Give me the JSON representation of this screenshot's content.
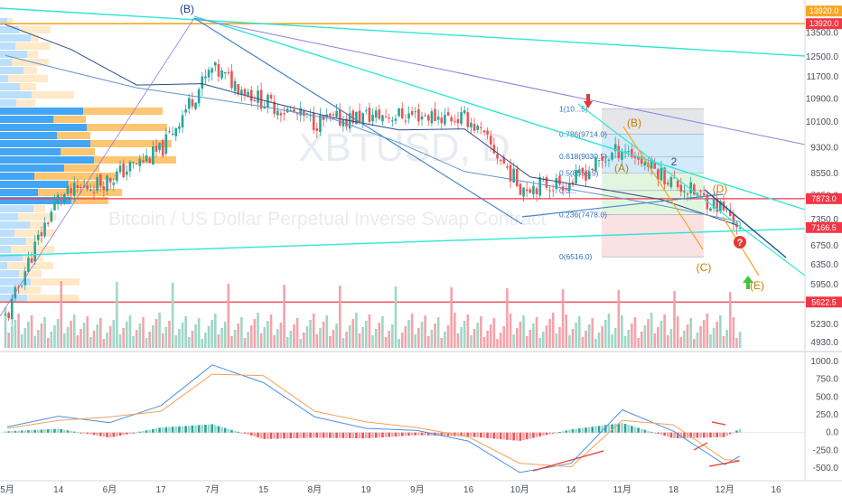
{
  "watermark": {
    "symbol": "XBTUSD, D",
    "description": "Bitcoin / US Dollar Perpetual Inverse Swap Contract"
  },
  "colors": {
    "up": "#26a69a",
    "down": "#ef5350",
    "up_vol": "#9fd6c8",
    "down_vol": "#f4a3aa",
    "ema_fast": "#2f4a8a",
    "ema_slow": "#5f95cc",
    "cyan": "#2ee6d6",
    "navy": "#1f4f8f",
    "purple": "#8a7fe0",
    "blue_line": "#4a87c9",
    "orange": "#f6a623",
    "red_line": "#f23645",
    "macd_line": "#4a90e2",
    "signal_line": "#f5a05a",
    "vp_up": "#2196f3",
    "vp_down": "#ffb74d"
  },
  "labels": {
    "wave_B_top": "(B)",
    "wave_A": "(A)",
    "wave_B": "(B)",
    "wave_C": "(C)",
    "wave_D": "(D)",
    "wave_E": "(E)",
    "wave_small_2": "2",
    "question": "?"
  },
  "fib_levels": [
    {
      "label": "1(10...5)",
      "value": 10540
    },
    {
      "label": "0.786(9714.0)",
      "value": 9714
    },
    {
      "label": "0.618(9030.5)",
      "value": 9030.5
    },
    {
      "label": "0.5(8558.5)",
      "value": 8558.5
    },
    {
      "label": "0.3...",
      "value": 8085
    },
    {
      "label": "0.236(7478.0)",
      "value": 7478
    },
    {
      "label": "0(6516.0)",
      "value": 6516
    }
  ],
  "price_tags": [
    {
      "text": "13920.0",
      "value": 13920,
      "color": "#f6a623"
    },
    {
      "text": "13920.0",
      "value": 13920,
      "color": "#f23645"
    },
    {
      "text": "7873.0",
      "value": 7873,
      "color": "#f23645"
    },
    {
      "text": "7166.5",
      "value": 7166.5,
      "color": "#f23645"
    },
    {
      "text": "5622.5",
      "value": 5622.5,
      "color": "#f23645"
    }
  ],
  "chart_data": [
    {
      "type": "line",
      "title": "",
      "description": "XBTUSD daily candlestick price chart with volume, EMAs, volume profile, Fibonacci retracement and Elliott-wave annotations",
      "x_ticks": [
        "5月",
        "14",
        "6月",
        "17",
        "7月",
        "15",
        "8月",
        "19",
        "9月",
        "16",
        "10月",
        "14",
        "11月",
        "18",
        "12月",
        "16"
      ],
      "y_ticks": [
        4930.0,
        5230.0,
        5590.0,
        5950.0,
        6350.0,
        6750.0,
        7350.0,
        7950.0,
        8550.0,
        9300.0,
        10100.0,
        10900.0,
        11700.0,
        12500.0,
        13500.0
      ],
      "y_scale": "log",
      "ylim": [
        4800,
        14600
      ],
      "horizontal_levels": [
        13920.0,
        7873.0,
        5622.5
      ],
      "last_price": 7166.5,
      "close_path": [
        {
          "x": "5月",
          "y": 5350
        },
        {
          "x": "14",
          "y": 7900
        },
        {
          "x": "6月",
          "y": 8400
        },
        {
          "x": "17",
          "y": 9200
        },
        {
          "x": "7月",
          "y": 12000
        },
        {
          "x": "15",
          "y": 10800
        },
        {
          "x": "8月",
          "y": 10100
        },
        {
          "x": "19",
          "y": 10300
        },
        {
          "x": "9月",
          "y": 10350
        },
        {
          "x": "16",
          "y": 10200
        },
        {
          "x": "10月",
          "y": 8200
        },
        {
          "x": "14",
          "y": 8300
        },
        {
          "x": "11月",
          "y": 9300
        },
        {
          "x": "18",
          "y": 8300
        },
        {
          "x": "12月",
          "y": 7600
        },
        {
          "x": "16",
          "y": 7166.5
        }
      ],
      "series": [
        {
          "values": [
            13880,
            12800,
            11400,
            11450,
            10800,
            10250,
            9850,
            9880,
            8450,
            8150,
            7850,
            7200
          ]
        },
        {
          "values": [
            12550,
            11900,
            11300,
            10950,
            10600,
            10200,
            9450,
            8600,
            8300,
            8000,
            7700,
            7300
          ]
        }
      ]
    },
    {
      "type": "bar",
      "title": "",
      "description": "MACD histogram with MACD and signal lines",
      "y_ticks": [
        1000.0,
        750.0,
        500.0,
        250.0,
        0.0,
        -250.0,
        -500.0
      ],
      "ylim": [
        -650,
        1100
      ],
      "x_ticks": [
        "5月",
        "14",
        "6月",
        "17",
        "7月",
        "15",
        "8月",
        "19",
        "9月",
        "16",
        "10月",
        "14",
        "11月",
        "18",
        "12月",
        "16"
      ],
      "series": [
        {
          "values": [
            80,
            230,
            140,
            380,
            950,
            700,
            220,
            60,
            30,
            -120,
            -560,
            -430,
            320,
            20,
            -450,
            -330
          ]
        },
        {
          "values": [
            60,
            170,
            220,
            300,
            820,
            800,
            300,
            150,
            70,
            -60,
            -430,
            -480,
            170,
            110,
            -380,
            -390
          ]
        }
      ]
    }
  ]
}
